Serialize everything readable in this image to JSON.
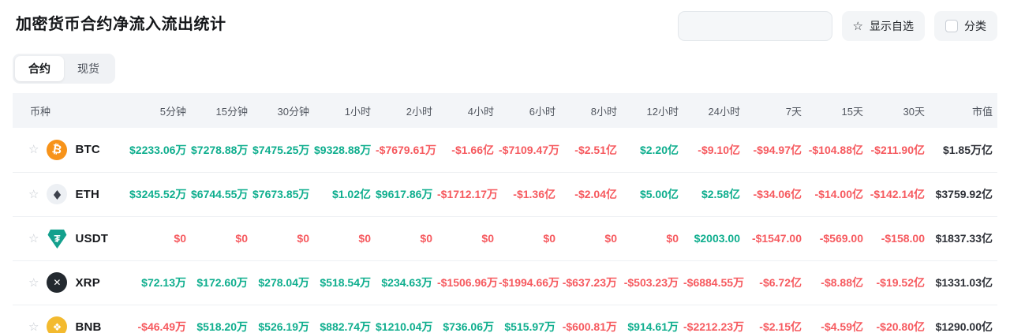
{
  "page": {
    "title": "加密货币合约净流入流出统计",
    "tabs": [
      {
        "label": "合约",
        "active": true
      },
      {
        "label": "现货",
        "active": false
      }
    ],
    "toolbar": {
      "search_placeholder": "",
      "search_value": "",
      "show_favorites_label": "显示自选",
      "category_label": "分类",
      "category_checked": false
    }
  },
  "icons": {
    "star": "☆",
    "search": "⌕"
  },
  "colors": {
    "pos": "#0fae8e",
    "neg": "#f65a5f",
    "title": "#15171a"
  },
  "table": {
    "columns": [
      "币种",
      "5分钟",
      "15分钟",
      "30分钟",
      "1小时",
      "2小时",
      "4小时",
      "6小时",
      "8小时",
      "12小时",
      "24小时",
      "7天",
      "15天",
      "30天",
      "市值"
    ],
    "rows": [
      {
        "symbol": "BTC",
        "icon": {
          "name": "btc-icon",
          "glyph": "₿",
          "bg": "#f7931a",
          "fg": "#ffffff",
          "shape": "circle"
        },
        "values": [
          {
            "v": "$2233.06万",
            "d": "up"
          },
          {
            "v": "$7278.88万",
            "d": "up"
          },
          {
            "v": "$7475.25万",
            "d": "up"
          },
          {
            "v": "$9328.88万",
            "d": "up"
          },
          {
            "v": "-$7679.61万",
            "d": "down"
          },
          {
            "v": "-$1.66亿",
            "d": "down"
          },
          {
            "v": "-$7109.47万",
            "d": "down"
          },
          {
            "v": "-$2.51亿",
            "d": "down"
          },
          {
            "v": "$2.20亿",
            "d": "up"
          },
          {
            "v": "-$9.10亿",
            "d": "down"
          },
          {
            "v": "-$94.97亿",
            "d": "down"
          },
          {
            "v": "-$104.88亿",
            "d": "down"
          },
          {
            "v": "-$211.90亿",
            "d": "down"
          }
        ],
        "market_cap": "$1.85万亿"
      },
      {
        "symbol": "ETH",
        "icon": {
          "name": "eth-icon",
          "glyph": "◆",
          "bg": "#edf0f4",
          "fg": "#3e424d",
          "shape": "circle"
        },
        "values": [
          {
            "v": "$3245.52万",
            "d": "up"
          },
          {
            "v": "$6744.55万",
            "d": "up"
          },
          {
            "v": "$7673.85万",
            "d": "up"
          },
          {
            "v": "$1.02亿",
            "d": "up"
          },
          {
            "v": "$9617.86万",
            "d": "up"
          },
          {
            "v": "-$1712.17万",
            "d": "down"
          },
          {
            "v": "-$1.36亿",
            "d": "down"
          },
          {
            "v": "-$2.04亿",
            "d": "down"
          },
          {
            "v": "$5.00亿",
            "d": "up"
          },
          {
            "v": "$2.58亿",
            "d": "up"
          },
          {
            "v": "-$34.06亿",
            "d": "down"
          },
          {
            "v": "-$14.00亿",
            "d": "down"
          },
          {
            "v": "-$142.14亿",
            "d": "down"
          }
        ],
        "market_cap": "$3759.92亿"
      },
      {
        "symbol": "USDT",
        "icon": {
          "name": "usdt-icon",
          "glyph": "₮",
          "bg": "#13a08d",
          "fg": "#ffffff",
          "shape": "shield"
        },
        "values": [
          {
            "v": "$0",
            "d": "down"
          },
          {
            "v": "$0",
            "d": "down"
          },
          {
            "v": "$0",
            "d": "down"
          },
          {
            "v": "$0",
            "d": "down"
          },
          {
            "v": "$0",
            "d": "down"
          },
          {
            "v": "$0",
            "d": "down"
          },
          {
            "v": "$0",
            "d": "down"
          },
          {
            "v": "$0",
            "d": "down"
          },
          {
            "v": "$0",
            "d": "down"
          },
          {
            "v": "$2003.00",
            "d": "up"
          },
          {
            "v": "-$1547.00",
            "d": "down"
          },
          {
            "v": "-$569.00",
            "d": "down"
          },
          {
            "v": "-$158.00",
            "d": "down"
          }
        ],
        "market_cap": "$1837.33亿"
      },
      {
        "symbol": "XRP",
        "icon": {
          "name": "xrp-icon",
          "glyph": "✕",
          "bg": "#23292f",
          "fg": "#ffffff",
          "shape": "circle"
        },
        "values": [
          {
            "v": "$72.13万",
            "d": "up"
          },
          {
            "v": "$172.60万",
            "d": "up"
          },
          {
            "v": "$278.04万",
            "d": "up"
          },
          {
            "v": "$518.54万",
            "d": "up"
          },
          {
            "v": "$234.63万",
            "d": "up"
          },
          {
            "v": "-$1506.96万",
            "d": "down"
          },
          {
            "v": "-$1994.66万",
            "d": "down"
          },
          {
            "v": "-$637.23万",
            "d": "down"
          },
          {
            "v": "-$503.23万",
            "d": "down"
          },
          {
            "v": "-$6884.55万",
            "d": "down"
          },
          {
            "v": "-$6.72亿",
            "d": "down"
          },
          {
            "v": "-$8.88亿",
            "d": "down"
          },
          {
            "v": "-$19.52亿",
            "d": "down"
          }
        ],
        "market_cap": "$1331.03亿"
      },
      {
        "symbol": "BNB",
        "icon": {
          "name": "bnb-icon",
          "glyph": "❖",
          "bg": "#f3ba2f",
          "fg": "#ffffff",
          "shape": "circle"
        },
        "values": [
          {
            "v": "-$46.49万",
            "d": "down"
          },
          {
            "v": "$518.20万",
            "d": "up"
          },
          {
            "v": "$526.19万",
            "d": "up"
          },
          {
            "v": "$882.74万",
            "d": "up"
          },
          {
            "v": "$1210.04万",
            "d": "up"
          },
          {
            "v": "$736.06万",
            "d": "up"
          },
          {
            "v": "$515.97万",
            "d": "up"
          },
          {
            "v": "-$600.81万",
            "d": "down"
          },
          {
            "v": "$914.61万",
            "d": "up"
          },
          {
            "v": "-$2212.23万",
            "d": "down"
          },
          {
            "v": "-$2.15亿",
            "d": "down"
          },
          {
            "v": "-$4.59亿",
            "d": "down"
          },
          {
            "v": "-$20.80亿",
            "d": "down"
          }
        ],
        "market_cap": "$1290.00亿"
      }
    ]
  }
}
